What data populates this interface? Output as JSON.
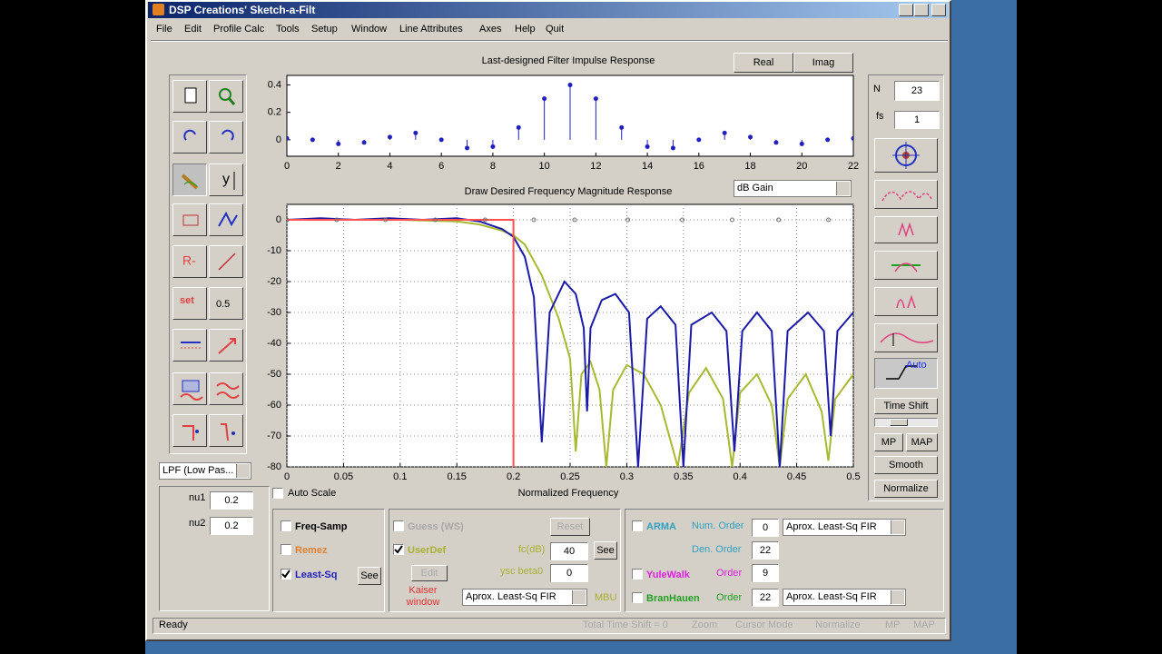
{
  "window": {
    "title": "DSP Creations' Sketch-a-Filt"
  },
  "menu": [
    "File",
    "Edit",
    "Profile Calc",
    "Tools",
    "Setup",
    "Window",
    "Line Attributes",
    "Axes",
    "Help",
    "Quit"
  ],
  "toolbar": {
    "set_label": "set",
    "value_button": "0.5"
  },
  "impulse": {
    "type": "stem",
    "title": "Last-designed Filter Impulse Response",
    "buttons": [
      "Real",
      "Imag"
    ],
    "x": [
      0,
      1,
      2,
      3,
      4,
      5,
      6,
      7,
      8,
      9,
      10,
      11,
      12,
      13,
      14,
      15,
      16,
      17,
      18,
      19,
      20,
      21,
      22
    ],
    "values": [
      0.01,
      0,
      -0.03,
      -0.02,
      0.02,
      0.05,
      0,
      -0.06,
      -0.05,
      0.09,
      0.3,
      0.4,
      0.3,
      0.09,
      -0.05,
      -0.06,
      0,
      0.05,
      0.02,
      -0.02,
      -0.03,
      0,
      0.01
    ],
    "color": "#2020c0",
    "xlim": [
      0,
      22
    ],
    "ylim": [
      -0.12,
      0.47
    ],
    "xticks": [
      0,
      2,
      4,
      6,
      8,
      10,
      12,
      14,
      16,
      18,
      20,
      22
    ],
    "yticks": [
      0,
      0.2,
      0.4
    ],
    "grid": false
  },
  "response": {
    "type": "line",
    "title": "Draw Desired Frequency Magnitude Response",
    "gain_mode": "dB Gain",
    "x_label": "Normalized Frequency",
    "auto_scale_label": "Auto Scale",
    "auto_scale": false,
    "xlim": [
      0,
      0.5
    ],
    "ylim": [
      -80,
      5
    ],
    "xticks": [
      0,
      0.05,
      0.1,
      0.15,
      0.2,
      0.25,
      0.3,
      0.35,
      0.4,
      0.45,
      0.5
    ],
    "yticks": [
      0,
      -10,
      -20,
      -30,
      -40,
      -50,
      -60,
      -70,
      -80
    ],
    "grid": true,
    "series": [
      {
        "style": "line",
        "color": "#a8b830",
        "x": [
          0,
          0.05,
          0.1,
          0.15,
          0.17,
          0.19,
          0.2,
          0.21,
          0.225,
          0.24,
          0.25,
          0.255,
          0.26,
          0.268,
          0.276,
          0.282,
          0.288,
          0.3,
          0.315,
          0.33,
          0.345,
          0.355,
          0.37,
          0.385,
          0.393,
          0.4,
          0.415,
          0.428,
          0.435,
          0.442,
          0.458,
          0.472,
          0.478,
          0.484,
          0.5
        ],
        "values": [
          0,
          0,
          0,
          -0.5,
          -1.5,
          -3.5,
          -5,
          -8,
          -18,
          -32,
          -45,
          -75,
          -50,
          -46,
          -55,
          -80,
          -55,
          -47,
          -50,
          -60,
          -80,
          -56,
          -48,
          -58,
          -80,
          -56,
          -50,
          -60,
          -80,
          -58,
          -50,
          -62,
          -78,
          -58,
          -50
        ]
      },
      {
        "style": "line",
        "color": "#1a1aa8",
        "x": [
          0,
          0.03,
          0.06,
          0.09,
          0.12,
          0.15,
          0.17,
          0.19,
          0.2,
          0.21,
          0.218,
          0.225,
          0.232,
          0.245,
          0.255,
          0.262,
          0.265,
          0.268,
          0.278,
          0.29,
          0.302,
          0.31,
          0.318,
          0.33,
          0.343,
          0.35,
          0.357,
          0.375,
          0.388,
          0.395,
          0.402,
          0.415,
          0.428,
          0.435,
          0.442,
          0.46,
          0.474,
          0.48,
          0.486,
          0.5
        ],
        "values": [
          0,
          0.5,
          0,
          0.5,
          0,
          0.5,
          -0.5,
          -3,
          -5.5,
          -12,
          -25,
          -72,
          -30,
          -20,
          -24,
          -35,
          -62,
          -35,
          -26,
          -24,
          -30,
          -80,
          -32,
          -28,
          -34,
          -80,
          -34,
          -30,
          -36,
          -75,
          -36,
          -30,
          -36,
          -80,
          -36,
          -30,
          -36,
          -70,
          -36,
          -30
        ]
      },
      {
        "style": "line",
        "color": "#ff5050",
        "x": [
          0,
          0.2,
          0.2
        ],
        "values": [
          0,
          0,
          -80
        ]
      },
      {
        "style": "markers",
        "color": "#707070",
        "x": [
          0,
          0.044,
          0.087,
          0.131,
          0.175,
          0.218,
          0.254,
          0.301,
          0.349,
          0.393,
          0.434,
          0.478
        ],
        "values": [
          0,
          0,
          0,
          0,
          0,
          0,
          0,
          0,
          0,
          0,
          0,
          0
        ]
      }
    ]
  },
  "side": {
    "n_label": "N",
    "n": 23,
    "fs_label": "fs",
    "fs": 1,
    "auto": "Auto",
    "time_shift": "Time Shift",
    "mp": "MP",
    "map": "MAP",
    "smooth": "Smooth",
    "normalize": "Normalize"
  },
  "left": {
    "filter_type": "LPF (Low Pas...",
    "nu1_label": "nu1",
    "nu1": 0.2,
    "nu2_label": "nu2",
    "nu2": 0.2
  },
  "bottom": {
    "freq_samp": {
      "label": "Freq-Samp",
      "checked": false
    },
    "remez": {
      "label": "Remez",
      "checked": false
    },
    "least_sq": {
      "label": "Least-Sq",
      "checked": true
    },
    "see": "See",
    "guess": {
      "label": "Guess (WS)",
      "checked": false
    },
    "reset": "Reset",
    "userdef": {
      "label": "UserDef",
      "checked": true
    },
    "fc_label": "fc(dB)",
    "fc": 40,
    "see2": "See",
    "beta_label": "ysc beta0",
    "beta": 0,
    "edit": "Edit",
    "kaiser": "Kaiser window",
    "method": "Aprox. Least-Sq FIR",
    "mbu": "MBU",
    "arma": {
      "label": "ARMA",
      "checked": false
    },
    "num_order_label": "Num. Order",
    "num_order": 0,
    "arma_method": "Aprox. Least-Sq FIR",
    "den_order_label": "Den. Order",
    "den_order": 22,
    "yulewalk": {
      "label": "YuleWalk",
      "checked": false
    },
    "yule_order_label": "Order",
    "yule_order": 9,
    "branhauen": {
      "label": "BranHauen",
      "checked": false
    },
    "bran_order_label": "Order",
    "bran_order": 22,
    "bran_method": "Aprox. Least-Sq FIR"
  },
  "status": {
    "text": "Ready",
    "items": [
      "Total Time Shift = 0",
      "Zoom",
      "Cursor Mode",
      "Normalize",
      "MP",
      "MAP"
    ]
  }
}
